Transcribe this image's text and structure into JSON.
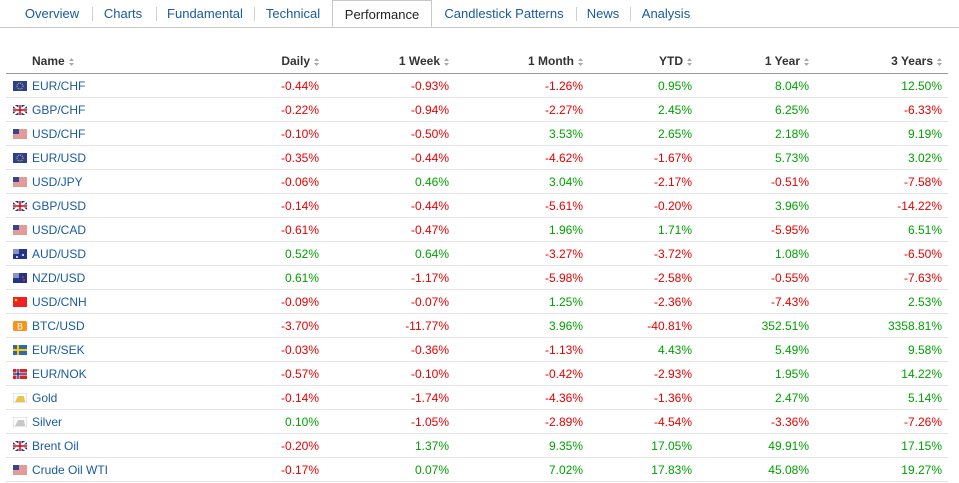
{
  "tabs": {
    "items": [
      "Overview",
      "Charts",
      "Fundamental",
      "Technical",
      "Performance",
      "Candlestick Patterns",
      "News",
      "Analysis"
    ],
    "active": 4
  },
  "table": {
    "columns": [
      "Name",
      "Daily",
      "1 Week",
      "1 Month",
      "YTD",
      "1 Year",
      "3 Years"
    ],
    "rows": [
      {
        "name": "EUR/CHF",
        "values": [
          "-0.44%",
          "-0.93%",
          "-1.26%",
          "0.95%",
          "8.04%",
          "12.50%"
        ]
      },
      {
        "name": "GBP/CHF",
        "values": [
          "-0.22%",
          "-0.94%",
          "-2.27%",
          "2.45%",
          "6.25%",
          "-6.33%"
        ]
      },
      {
        "name": "USD/CHF",
        "values": [
          "-0.10%",
          "-0.50%",
          "3.53%",
          "2.65%",
          "2.18%",
          "9.19%"
        ]
      },
      {
        "name": "EUR/USD",
        "values": [
          "-0.35%",
          "-0.44%",
          "-4.62%",
          "-1.67%",
          "5.73%",
          "3.02%"
        ]
      },
      {
        "name": "USD/JPY",
        "values": [
          "-0.06%",
          "0.46%",
          "3.04%",
          "-2.17%",
          "-0.51%",
          "-7.58%"
        ]
      },
      {
        "name": "GBP/USD",
        "values": [
          "-0.14%",
          "-0.44%",
          "-5.61%",
          "-0.20%",
          "3.96%",
          "-14.22%"
        ]
      },
      {
        "name": "USD/CAD",
        "values": [
          "-0.61%",
          "-0.47%",
          "1.96%",
          "1.71%",
          "-5.95%",
          "6.51%"
        ]
      },
      {
        "name": "AUD/USD",
        "values": [
          "0.52%",
          "0.64%",
          "-3.27%",
          "-3.72%",
          "1.08%",
          "-6.50%"
        ]
      },
      {
        "name": "NZD/USD",
        "values": [
          "0.61%",
          "-1.17%",
          "-5.98%",
          "-2.58%",
          "-0.55%",
          "-7.63%"
        ]
      },
      {
        "name": "USD/CNH",
        "values": [
          "-0.09%",
          "-0.07%",
          "1.25%",
          "-2.36%",
          "-7.43%",
          "2.53%"
        ]
      },
      {
        "name": "BTC/USD",
        "values": [
          "-3.70%",
          "-11.77%",
          "3.96%",
          "-40.81%",
          "352.51%",
          "3358.81%"
        ]
      },
      {
        "name": "EUR/SEK",
        "values": [
          "-0.03%",
          "-0.36%",
          "-1.13%",
          "4.43%",
          "5.49%",
          "9.58%"
        ]
      },
      {
        "name": "EUR/NOK",
        "values": [
          "-0.57%",
          "-0.10%",
          "-0.42%",
          "-2.93%",
          "1.95%",
          "14.22%"
        ]
      },
      {
        "name": "Gold",
        "values": [
          "-0.14%",
          "-1.74%",
          "-4.36%",
          "-1.36%",
          "2.47%",
          "5.14%"
        ]
      },
      {
        "name": "Silver",
        "values": [
          "0.10%",
          "-1.05%",
          "-2.89%",
          "-4.54%",
          "-3.36%",
          "-7.26%"
        ]
      },
      {
        "name": "Brent Oil",
        "values": [
          "-0.20%",
          "1.37%",
          "9.35%",
          "17.05%",
          "49.91%",
          "17.15%"
        ]
      },
      {
        "name": "Crude Oil WTI",
        "values": [
          "-0.17%",
          "0.07%",
          "7.02%",
          "17.83%",
          "45.08%",
          "19.27%"
        ]
      }
    ]
  }
}
